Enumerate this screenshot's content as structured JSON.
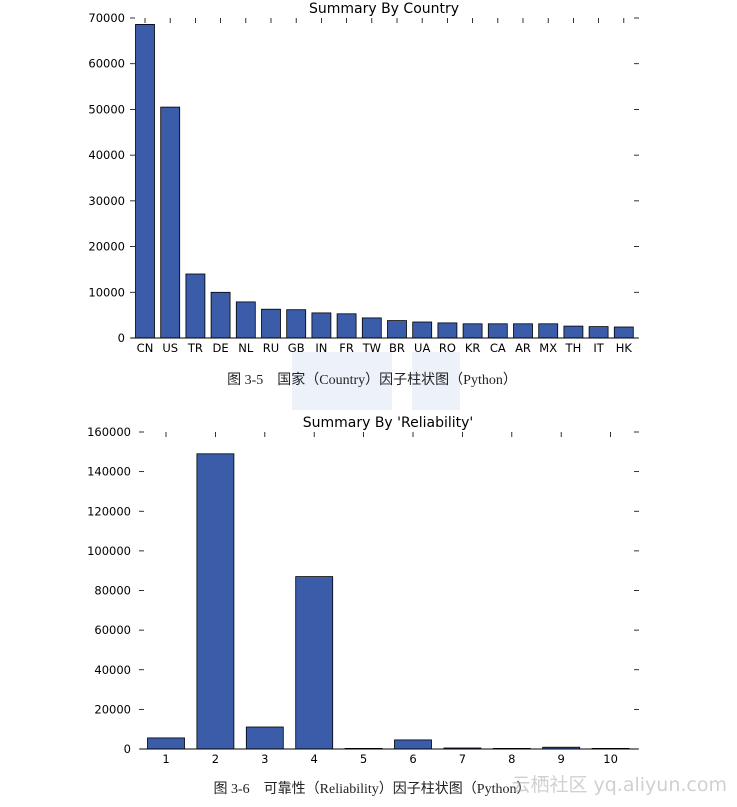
{
  "figures": [
    {
      "caption": "图 3-5　国家（Country）因子柱状图（Python）"
    },
    {
      "caption": "图 3-6　可靠性（Reliability）因子柱状图（Python）"
    }
  ],
  "watermark": "云栖社区 yq.aliyun.com",
  "colors": {
    "bar": "#3a5ca9",
    "edge": "#000000",
    "axis": "#000000",
    "text": "#000000"
  },
  "chart_data": [
    {
      "type": "bar",
      "title": "Summary By Country",
      "xlabel": "",
      "ylabel": "",
      "categories": [
        "CN",
        "US",
        "TR",
        "DE",
        "NL",
        "RU",
        "GB",
        "IN",
        "FR",
        "TW",
        "BR",
        "UA",
        "RO",
        "KR",
        "CA",
        "AR",
        "MX",
        "TH",
        "IT",
        "HK"
      ],
      "values": [
        68600,
        50500,
        14000,
        10000,
        7900,
        6300,
        6200,
        5500,
        5300,
        4400,
        3800,
        3500,
        3300,
        3100,
        3100,
        3100,
        3100,
        2600,
        2500,
        2400
      ],
      "ylim": [
        0,
        70000
      ],
      "yticks": [
        0,
        10000,
        20000,
        30000,
        40000,
        50000,
        60000,
        70000
      ],
      "grid": false,
      "legend": "none"
    },
    {
      "type": "bar",
      "title": "Summary By 'Reliability'",
      "xlabel": "",
      "ylabel": "",
      "categories": [
        "1",
        "2",
        "3",
        "4",
        "5",
        "6",
        "7",
        "8",
        "9",
        "10"
      ],
      "values": [
        5600,
        149000,
        11100,
        87000,
        200,
        4600,
        500,
        200,
        900,
        100
      ],
      "ylim": [
        0,
        160000
      ],
      "yticks": [
        0,
        20000,
        40000,
        60000,
        80000,
        100000,
        120000,
        140000,
        160000
      ],
      "grid": false,
      "legend": "none"
    }
  ]
}
